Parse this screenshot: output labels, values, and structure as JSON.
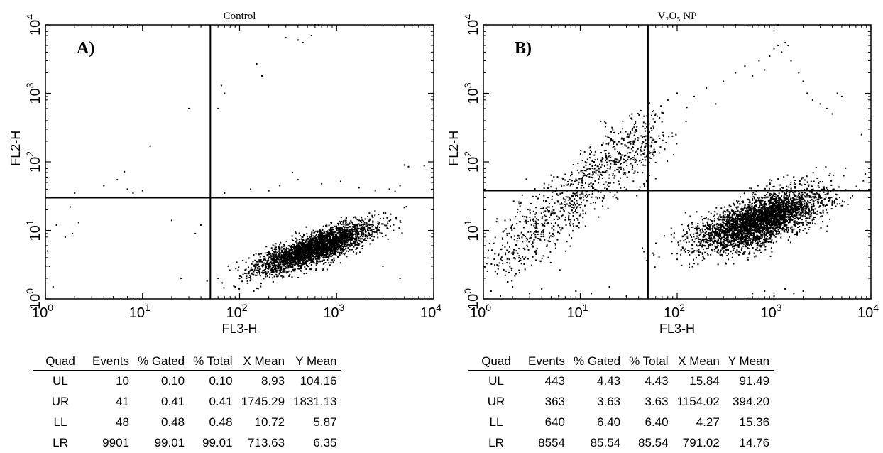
{
  "chart_data": [
    {
      "type": "scatter",
      "panel_label": "A)",
      "title": "Control",
      "xlabel": "FL3-H",
      "ylabel": "FL2-H",
      "x_scale": "log",
      "y_scale": "log",
      "xlim": [
        1,
        10000
      ],
      "ylim": [
        1,
        10000
      ],
      "x_ticks": [
        "10",
        "10",
        "10",
        "10",
        "10"
      ],
      "x_tick_exponents": [
        "0",
        "1",
        "2",
        "3",
        "4"
      ],
      "y_ticks": [
        "10",
        "10",
        "10",
        "10",
        "10"
      ],
      "y_tick_exponents": [
        "0",
        "1",
        "2",
        "3",
        "4"
      ],
      "quadrant_gate": {
        "x": 50,
        "y": 30
      },
      "cluster": {
        "center_x": 600,
        "center_y": 5.5,
        "spread_x_decades": 0.3,
        "spread_y_decades": 0.18,
        "correlation": 0.8,
        "count": 3000
      },
      "sparse_points": [
        [
          1.05,
          5
        ],
        [
          1.1,
          3
        ],
        [
          1.2,
          1.5
        ],
        [
          1.3,
          12
        ],
        [
          1.6,
          8
        ],
        [
          1.8,
          22
        ],
        [
          1.9,
          9
        ],
        [
          2,
          35
        ],
        [
          2.2,
          13
        ],
        [
          3.5,
          30
        ],
        [
          4,
          45
        ],
        [
          5.5,
          55
        ],
        [
          6.5,
          72
        ],
        [
          7,
          40
        ],
        [
          8,
          35
        ],
        [
          10,
          38
        ],
        [
          12,
          170
        ],
        [
          20,
          14
        ],
        [
          25,
          2
        ],
        [
          30,
          600
        ],
        [
          35,
          9
        ],
        [
          40,
          12
        ],
        [
          60,
          600
        ],
        [
          65,
          1300
        ],
        [
          70,
          1000
        ],
        [
          150,
          2700
        ],
        [
          170,
          1800
        ],
        [
          300,
          6500
        ],
        [
          400,
          6000
        ],
        [
          450,
          5500
        ],
        [
          550,
          7000
        ],
        [
          600,
          10000
        ],
        [
          650,
          10000
        ],
        [
          70,
          35
        ],
        [
          130,
          40
        ],
        [
          200,
          38
        ],
        [
          260,
          45
        ],
        [
          350,
          70
        ],
        [
          400,
          55
        ],
        [
          700,
          48
        ],
        [
          1100,
          52
        ],
        [
          1700,
          42
        ],
        [
          2500,
          38
        ],
        [
          3500,
          40
        ],
        [
          4000,
          37
        ],
        [
          4500,
          45
        ],
        [
          5000,
          90
        ],
        [
          5500,
          85
        ],
        [
          8000,
          88
        ],
        [
          60,
          2
        ],
        [
          90,
          1.5
        ],
        [
          140,
          1.3
        ],
        [
          3000,
          3
        ],
        [
          4500,
          2
        ]
      ],
      "stats": {
        "columns": [
          "Quad",
          "Events",
          "% Gated",
          "% Total",
          "X Mean",
          "Y Mean"
        ],
        "rows": [
          [
            "UL",
            "10",
            "0.10",
            "0.10",
            "8.93",
            "104.16"
          ],
          [
            "UR",
            "41",
            "0.41",
            "0.41",
            "1745.29",
            "1831.13"
          ],
          [
            "LL",
            "48",
            "0.48",
            "0.48",
            "10.72",
            "5.87"
          ],
          [
            "LR",
            "9901",
            "99.01",
            "99.01",
            "713.63",
            "6.35"
          ]
        ]
      }
    },
    {
      "type": "scatter",
      "panel_label": "B)",
      "title": "V₂O₅ NP",
      "xlabel": "FL3-H",
      "ylabel": "FL2-H",
      "x_scale": "log",
      "y_scale": "log",
      "xlim": [
        1,
        10000
      ],
      "ylim": [
        1,
        10000
      ],
      "x_ticks": [
        "10",
        "10",
        "10",
        "10",
        "10"
      ],
      "x_tick_exponents": [
        "0",
        "1",
        "2",
        "3",
        "4"
      ],
      "y_ticks": [
        "10",
        "10",
        "10",
        "10",
        "10"
      ],
      "y_tick_exponents": [
        "0",
        "1",
        "2",
        "3",
        "4"
      ],
      "quadrant_gate": {
        "x": 50,
        "y": 38
      },
      "cluster": {
        "center_x": 700,
        "center_y": 14,
        "spread_x_decades": 0.32,
        "spread_y_decades": 0.22,
        "correlation": 0.65,
        "count": 3500
      },
      "diagonal_cluster": {
        "x_start": 1.2,
        "x_end": 60,
        "y_start": 3,
        "y_end": 300,
        "spread_decades": 0.22,
        "count": 1000
      },
      "sparse_points": [
        [
          60,
          500
        ],
        [
          80,
          800
        ],
        [
          100,
          1000
        ],
        [
          150,
          900
        ],
        [
          200,
          1200
        ],
        [
          250,
          700
        ],
        [
          300,
          1500
        ],
        [
          400,
          2000
        ],
        [
          500,
          2500
        ],
        [
          600,
          1800
        ],
        [
          700,
          3000
        ],
        [
          800,
          2200
        ],
        [
          900,
          3500
        ],
        [
          1000,
          4500
        ],
        [
          1100,
          5000
        ],
        [
          1200,
          4000
        ],
        [
          1300,
          5500
        ],
        [
          1400,
          5000
        ],
        [
          1500,
          3000
        ],
        [
          1800,
          2000
        ],
        [
          2000,
          1500
        ],
        [
          2200,
          1000
        ],
        [
          2500,
          800
        ],
        [
          3000,
          700
        ],
        [
          3500,
          600
        ],
        [
          4000,
          500
        ],
        [
          4500,
          1000
        ],
        [
          5000,
          900
        ],
        [
          8000,
          250
        ],
        [
          400,
          10000
        ],
        [
          700,
          10000
        ],
        [
          1100,
          10000
        ],
        [
          3000,
          10000
        ],
        [
          1.2,
          1.3
        ],
        [
          1.5,
          1.1
        ],
        [
          2,
          1.5
        ],
        [
          3,
          1.2
        ],
        [
          4,
          1.4
        ],
        [
          6,
          1.1
        ],
        [
          9,
          1.3
        ],
        [
          13,
          1.2
        ],
        [
          20,
          1.5
        ],
        [
          30,
          1.1
        ],
        [
          600,
          1.2
        ],
        [
          800,
          1.3
        ],
        [
          1000,
          1.1
        ],
        [
          1300,
          1.4
        ],
        [
          1600,
          1.2
        ],
        [
          2000,
          1.3
        ]
      ],
      "stats": {
        "columns": [
          "Quad",
          "Events",
          "% Gated",
          "% Total",
          "X Mean",
          "Y Mean"
        ],
        "rows": [
          [
            "UL",
            "443",
            "4.43",
            "4.43",
            "15.84",
            "91.49"
          ],
          [
            "UR",
            "363",
            "3.63",
            "3.63",
            "1154.02",
            "394.20"
          ],
          [
            "LL",
            "640",
            "6.40",
            "6.40",
            "4.27",
            "15.36"
          ],
          [
            "LR",
            "8554",
            "85.54",
            "85.54",
            "791.02",
            "14.76"
          ]
        ]
      }
    }
  ]
}
